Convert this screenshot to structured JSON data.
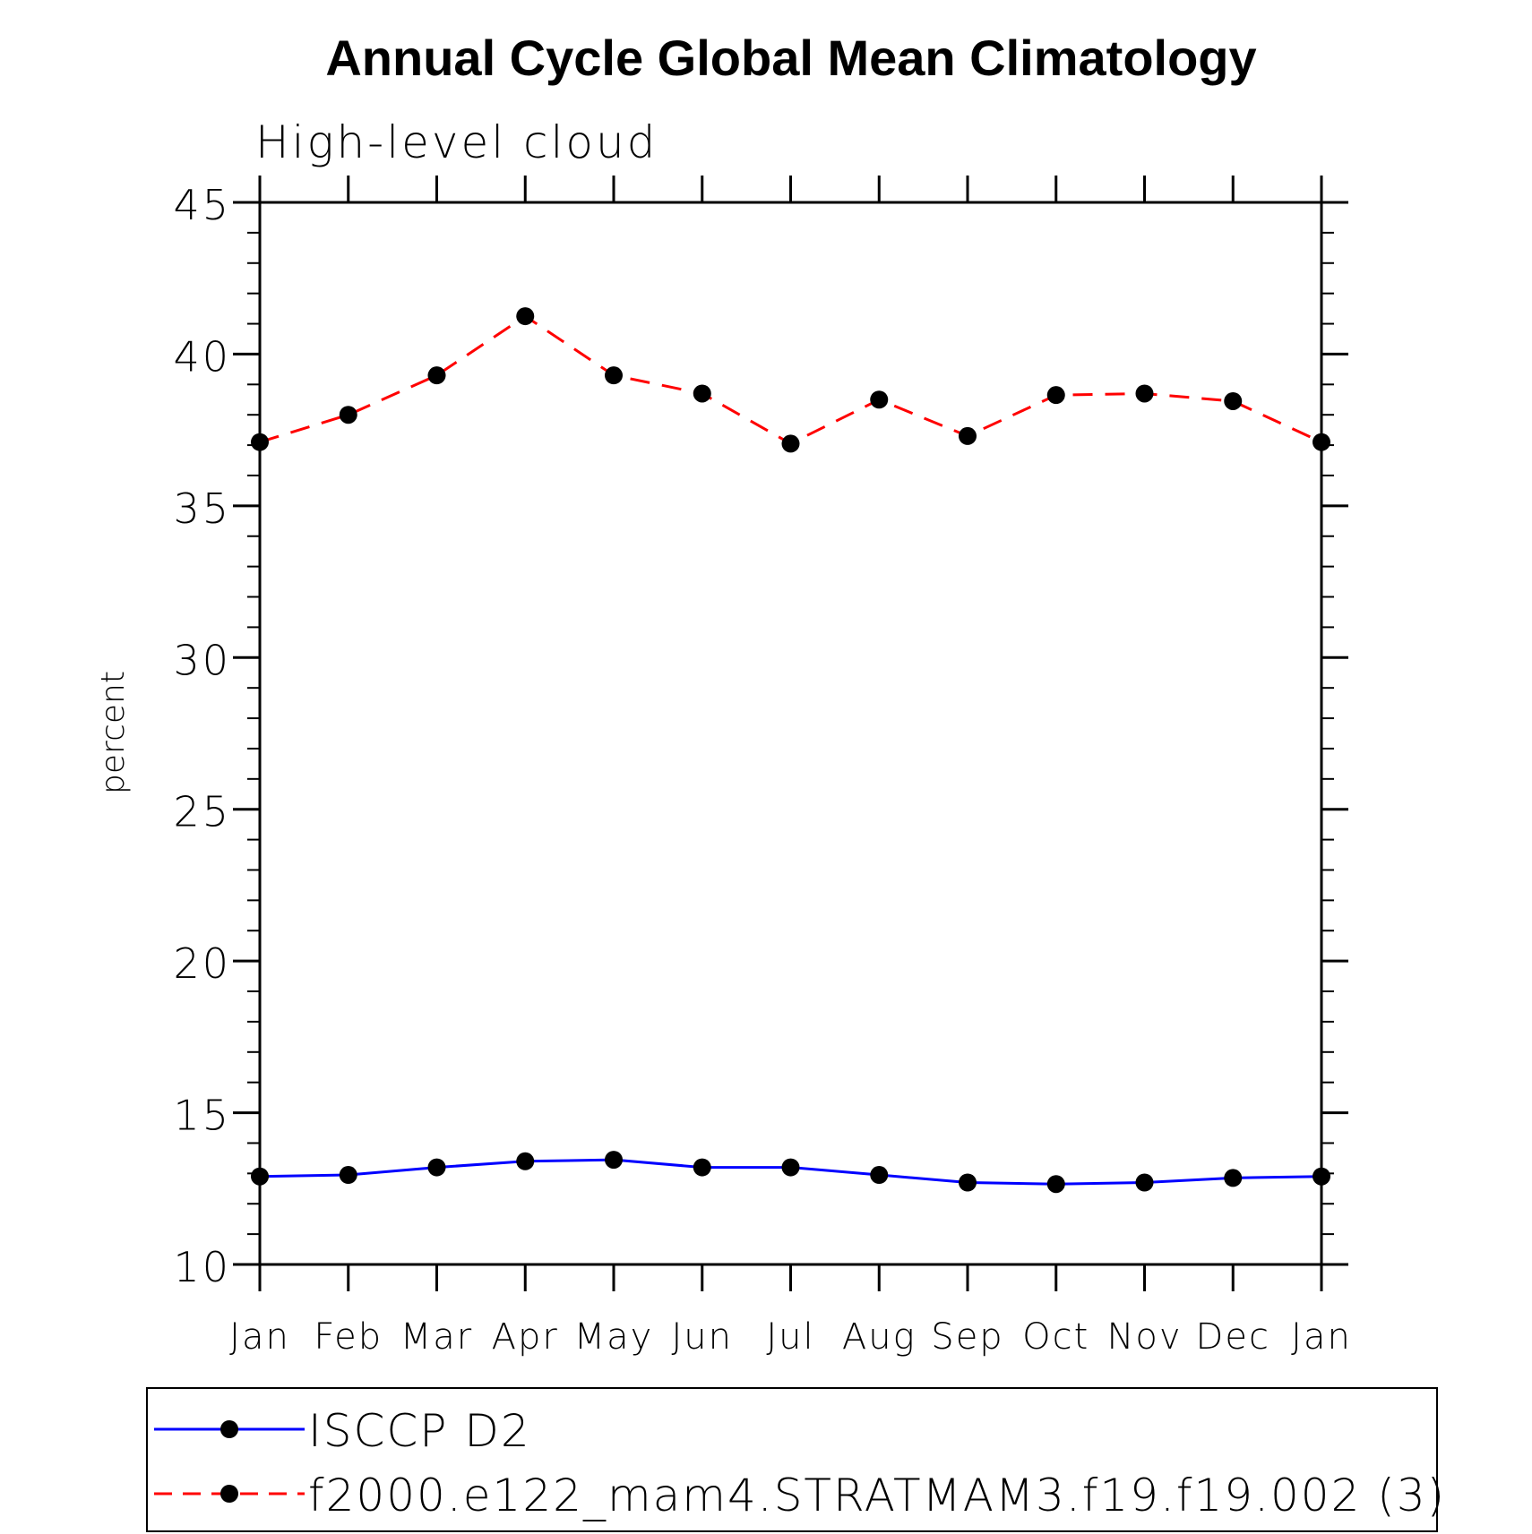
{
  "chart_data": {
    "type": "line",
    "title": "Annual Cycle Global Mean Climatology",
    "subtitle": "High-level cloud",
    "ylabel": "percent",
    "xlabel": "",
    "categories": [
      "Jan",
      "Feb",
      "Mar",
      "Apr",
      "May",
      "Jun",
      "Jul",
      "Aug",
      "Sep",
      "Oct",
      "Nov",
      "Dec",
      "Jan"
    ],
    "ylim": [
      10,
      45
    ],
    "yticks": [
      "10",
      "15",
      "20",
      "25",
      "30",
      "35",
      "40",
      "45"
    ],
    "legend_position": "bottom",
    "series": [
      {
        "name": "ISCCP D2",
        "color": "#0000ff",
        "line_style": "solid",
        "marker": "filled-circle",
        "values": [
          12.9,
          12.95,
          13.2,
          13.4,
          13.45,
          13.2,
          13.2,
          12.95,
          12.7,
          12.65,
          12.7,
          12.85,
          12.9
        ]
      },
      {
        "name": "f2000.e122_mam4.STRATMAM3.f19.f19.002 (3)",
        "color": "#ff0000",
        "line_style": "dashed",
        "marker": "filled-circle",
        "values": [
          37.1,
          38.0,
          39.3,
          41.25,
          39.3,
          38.7,
          37.05,
          38.5,
          37.3,
          38.65,
          38.7,
          38.45,
          37.1
        ]
      }
    ]
  }
}
